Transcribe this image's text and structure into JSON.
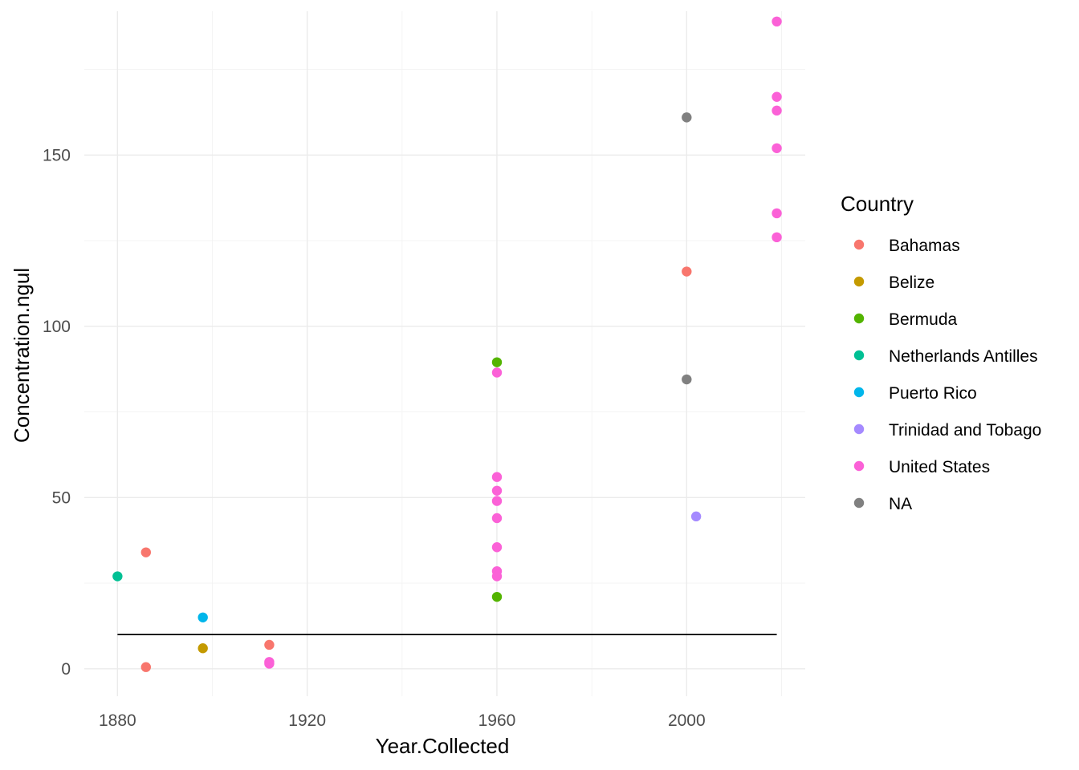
{
  "chart_data": {
    "type": "scatter",
    "xlabel": "Year.Collected",
    "ylabel": "Concentration.ngul",
    "xlim": [
      1873,
      2025
    ],
    "ylim": [
      -8,
      192
    ],
    "x_ticks": [
      1880,
      1920,
      1960,
      2000
    ],
    "y_ticks": [
      0,
      50,
      100,
      150
    ],
    "grid": true,
    "legend": {
      "title": "Country",
      "placement": "right"
    },
    "reference_line": {
      "y": 10,
      "x_start": 1880,
      "x_end": 2019,
      "color": "#000000"
    },
    "series": [
      {
        "name": "Bahamas",
        "color": "#F8766D",
        "points": [
          [
            1886,
            34
          ],
          [
            1886,
            0.5
          ],
          [
            1912,
            7
          ],
          [
            2000,
            116
          ]
        ]
      },
      {
        "name": "Belize",
        "color": "#C49A00",
        "points": [
          [
            1898,
            6
          ]
        ]
      },
      {
        "name": "Bermuda",
        "color": "#53B400",
        "points": [
          [
            1960,
            89.5
          ],
          [
            1960,
            21
          ]
        ]
      },
      {
        "name": "Netherlands Antilles",
        "color": "#00C094",
        "points": [
          [
            1880,
            27
          ]
        ]
      },
      {
        "name": "Puerto Rico",
        "color": "#00B6EB",
        "points": [
          [
            1898,
            15
          ]
        ]
      },
      {
        "name": "Trinidad and Tobago",
        "color": "#A58AFF",
        "points": [
          [
            2002,
            44.5
          ]
        ]
      },
      {
        "name": "United States",
        "color": "#FB61D7",
        "points": [
          [
            1912,
            2
          ],
          [
            1912,
            1.5
          ],
          [
            1960,
            86.5
          ],
          [
            1960,
            56
          ],
          [
            1960,
            52
          ],
          [
            1960,
            49
          ],
          [
            1960,
            44
          ],
          [
            1960,
            35.5
          ],
          [
            1960,
            28.5
          ],
          [
            1960,
            27
          ],
          [
            2019,
            189
          ],
          [
            2019,
            167
          ],
          [
            2019,
            163
          ],
          [
            2019,
            152
          ],
          [
            2019,
            133
          ],
          [
            2019,
            126
          ]
        ]
      },
      {
        "name": "NA",
        "color": "#808080",
        "points": [
          [
            2000,
            161
          ],
          [
            2000,
            84.5
          ]
        ]
      }
    ]
  }
}
